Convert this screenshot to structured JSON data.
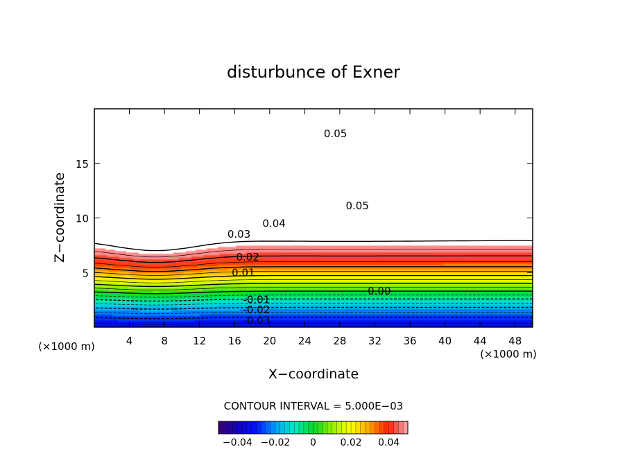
{
  "chart_data": {
    "type": "heatmap",
    "title": "disturbunce of Exner",
    "xlabel": "X−coordinate",
    "ylabel": "Z−coordinate",
    "x_unit_left": "(×1000 m)",
    "x_unit_right": "(×1000 m)",
    "xlim": [
      0,
      50
    ],
    "ylim": [
      0,
      20
    ],
    "x_ticks": [
      "4",
      "8",
      "12",
      "16",
      "20",
      "24",
      "28",
      "32",
      "36",
      "40",
      "44",
      "48"
    ],
    "x_tick_values": [
      4,
      8,
      12,
      16,
      20,
      24,
      28,
      32,
      36,
      40,
      44,
      48
    ],
    "y_ticks": [
      "5",
      "10",
      "15"
    ],
    "y_tick_values": [
      5,
      10,
      15
    ],
    "contour_interval_text": "CONTOUR INTERVAL = 5.000E−03",
    "contour_labels": [
      {
        "text": "0.05",
        "x": 27.5,
        "z": 17.7
      },
      {
        "text": "0.05",
        "x": 30.0,
        "z": 11.1
      },
      {
        "text": "0.04",
        "x": 20.5,
        "z": 9.5
      },
      {
        "text": "0.03",
        "x": 16.5,
        "z": 8.5
      },
      {
        "text": "0.02",
        "x": 17.5,
        "z": 6.4
      },
      {
        "text": "0.01",
        "x": 17.0,
        "z": 5.0
      },
      {
        "text": "0.00",
        "x": 32.5,
        "z": 3.3
      },
      {
        "text": "-0.01",
        "x": 18.5,
        "z": 2.5
      },
      {
        "text": "-0.02",
        "x": 18.5,
        "z": 1.6
      },
      {
        "text": "-0.03",
        "x": 18.5,
        "z": 0.6
      }
    ],
    "colorbar": {
      "range": [
        -0.05,
        0.05
      ],
      "ticks": [
        "−0.04",
        "−0.02",
        "0",
        "0.02",
        "0.04"
      ],
      "tick_values": [
        -0.04,
        -0.02,
        0,
        0.02,
        0.04
      ]
    },
    "grid": false,
    "legend": "colorbar-bottom"
  }
}
